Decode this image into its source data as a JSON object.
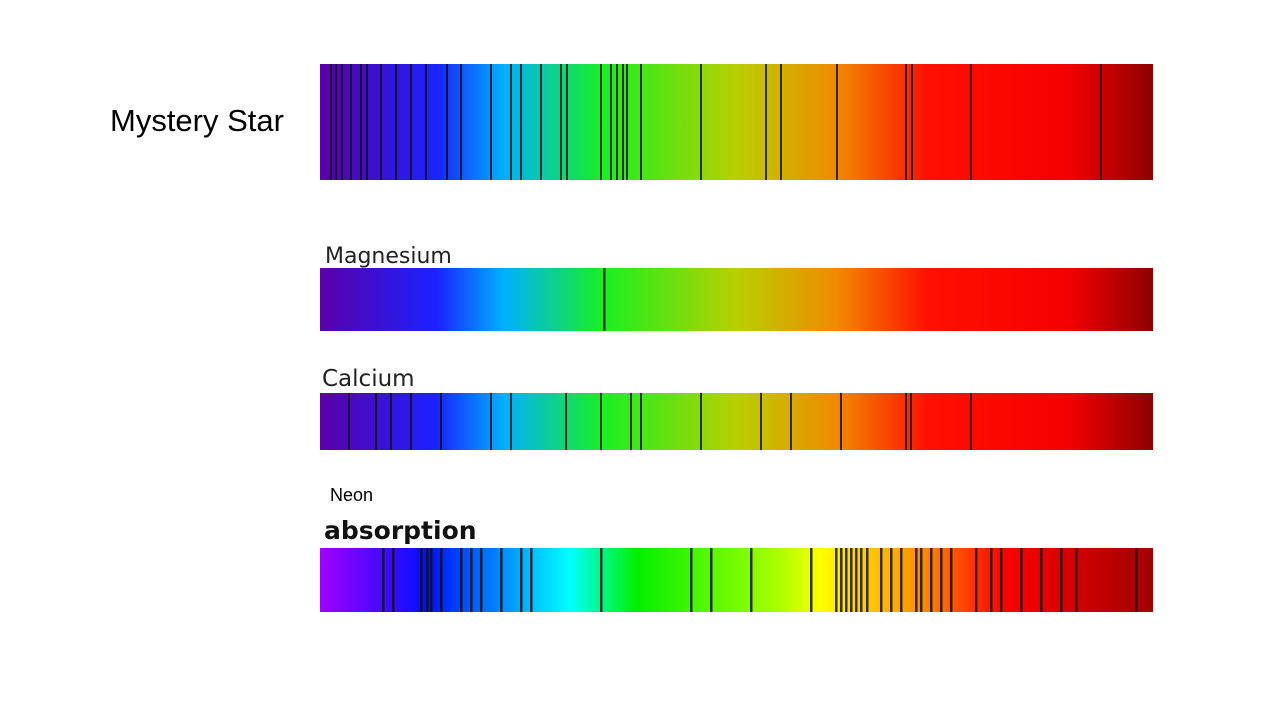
{
  "slide": {
    "mystery": {
      "label": "Mystery Star"
    },
    "spectra": [
      {
        "label": "Magnesium"
      },
      {
        "label": "Calcium"
      },
      {
        "label": "Neon",
        "sublabel": "absorption"
      }
    ]
  }
}
